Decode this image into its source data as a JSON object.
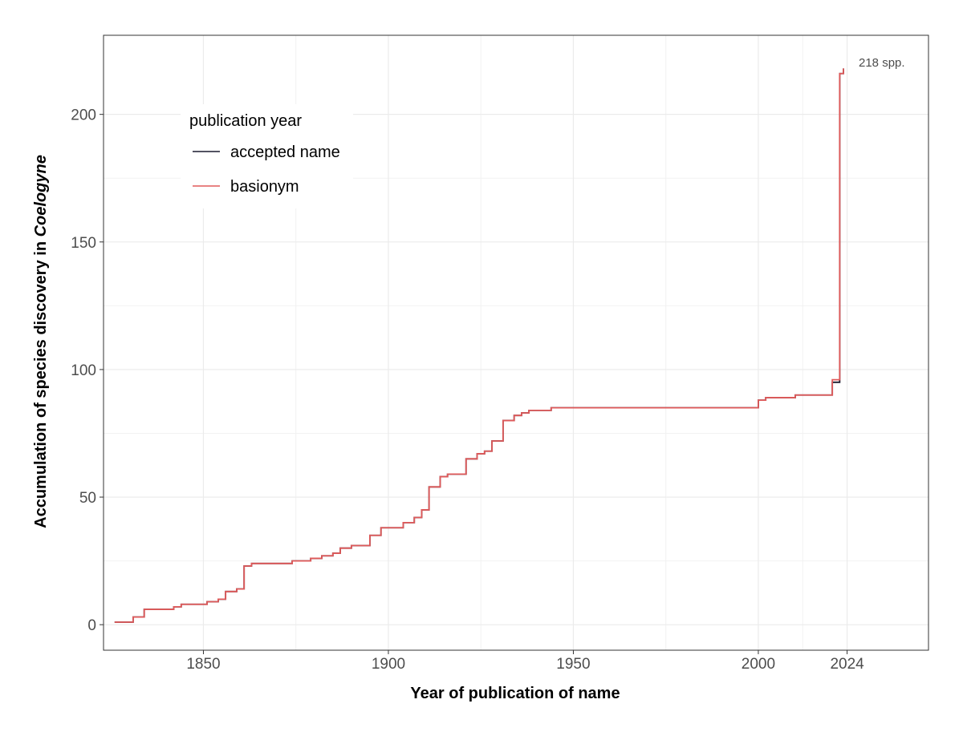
{
  "chart_data": {
    "type": "line",
    "step": true,
    "xlabel": "Year of publication of name",
    "ylabel_prefix": "Accumulation of species discovery in ",
    "ylabel_genus": "Coelogyne",
    "xlim": [
      1823,
      2046
    ],
    "ylim": [
      -10,
      231
    ],
    "x_ticks": [
      1850,
      1900,
      1950,
      2000,
      2024
    ],
    "x_tick_labels": [
      "1850",
      "1900",
      "1950",
      "2000",
      "2024"
    ],
    "y_ticks": [
      0,
      50,
      100,
      150,
      200
    ],
    "y_tick_labels": [
      "0",
      "50",
      "100",
      "150",
      "200"
    ],
    "grid": true,
    "legend": {
      "title": "publication year",
      "position": "top-left",
      "entries": [
        {
          "label": "accepted name",
          "color": "#1a1a2e"
        },
        {
          "label": "basionym",
          "color": "#e05a5a"
        }
      ]
    },
    "annotation": {
      "text": "218 spp.",
      "x": 2022,
      "y": 220
    },
    "series": [
      {
        "name": "accepted name",
        "color": "#1a1a2e",
        "x": [
          1826,
          1831,
          1834,
          1842,
          1844,
          1851,
          1854,
          1856,
          1859,
          1861,
          1863,
          1874,
          1879,
          1882,
          1885,
          1887,
          1890,
          1895,
          1898,
          1904,
          1907,
          1909,
          1911,
          1914,
          1916,
          1921,
          1924,
          1926,
          1928,
          1931,
          1934,
          1936,
          1938,
          1940,
          1944,
          2000,
          2002,
          2010,
          2020,
          2021,
          2022,
          2023
        ],
        "y": [
          1,
          3,
          6,
          7,
          8,
          9,
          10,
          13,
          14,
          23,
          24,
          25,
          26,
          27,
          28,
          30,
          31,
          35,
          38,
          40,
          42,
          45,
          54,
          58,
          59,
          65,
          67,
          68,
          72,
          80,
          82,
          83,
          84,
          84,
          85,
          88,
          89,
          90,
          95,
          95,
          216,
          218
        ]
      },
      {
        "name": "basionym",
        "color": "#e05a5a",
        "x": [
          1826,
          1831,
          1834,
          1842,
          1844,
          1851,
          1854,
          1856,
          1859,
          1861,
          1863,
          1874,
          1879,
          1882,
          1885,
          1887,
          1890,
          1895,
          1898,
          1904,
          1907,
          1909,
          1911,
          1914,
          1916,
          1921,
          1924,
          1926,
          1928,
          1931,
          1934,
          1936,
          1938,
          1940,
          1944,
          2000,
          2002,
          2010,
          2020,
          2021,
          2022,
          2023
        ],
        "y": [
          1,
          3,
          6,
          7,
          8,
          9,
          10,
          13,
          14,
          23,
          24,
          25,
          26,
          27,
          28,
          30,
          31,
          35,
          38,
          40,
          42,
          45,
          54,
          58,
          59,
          65,
          67,
          68,
          72,
          80,
          82,
          83,
          84,
          84,
          85,
          88,
          89,
          90,
          96,
          96,
          216,
          218
        ]
      }
    ]
  }
}
